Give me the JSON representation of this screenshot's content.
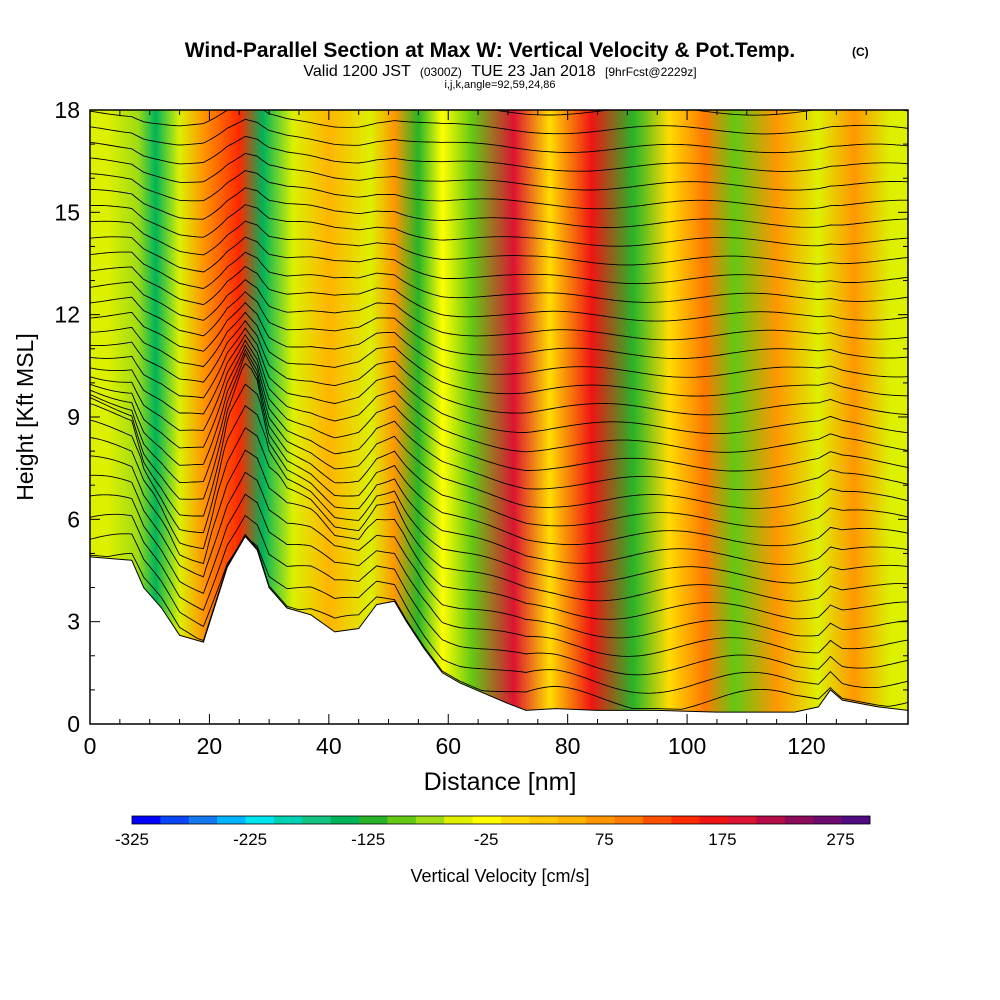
{
  "chart_data": {
    "type": "heatmap",
    "title": "Wind-Parallel Section at Max W: Vertical Velocity & Pot.Temp.",
    "title_mark": "(C)",
    "subtitle_prefix": "Valid 1200 JST",
    "subtitle_utc": "(0300Z)",
    "subtitle_date": "TUE 23 Jan 2018",
    "subtitle_fcst": "[9hrFcst@2229z]",
    "subtitle_params": "i,j,k,angle=92,59,24,86",
    "xlabel": "Distance [nm]",
    "ylabel": "Height [Kft MSL]",
    "xlim": [
      0,
      137
    ],
    "ylim": [
      0,
      18
    ],
    "x_ticks": [
      "0",
      "20",
      "40",
      "60",
      "80",
      "100",
      "120"
    ],
    "y_ticks": [
      "0",
      "3",
      "6",
      "9",
      "12",
      "15",
      "18"
    ],
    "colorbar": {
      "label": "Vertical Velocity [cm/s]",
      "ticks": [
        "-325",
        "-225",
        "-125",
        "-25",
        "75",
        "175",
        "275"
      ],
      "range": [
        -325,
        300
      ],
      "colors": [
        "#0000ff",
        "#0a46f5",
        "#1478f0",
        "#00b4ff",
        "#00e6f0",
        "#00d2b4",
        "#14c382",
        "#00b45a",
        "#28b428",
        "#64c814",
        "#a0dc14",
        "#dcf000",
        "#ffff00",
        "#ffdc00",
        "#ffc800",
        "#ffb400",
        "#ff9600",
        "#ff7800",
        "#ff5000",
        "#ff2800",
        "#f01414",
        "#dc1432",
        "#b40a46",
        "#8c0a5a",
        "#6e0a6e",
        "#500a82"
      ]
    },
    "vertical_velocity_bands": [
      {
        "x": 3,
        "w": -40
      },
      {
        "x": 8,
        "w": -75
      },
      {
        "x": 11,
        "w": -140
      },
      {
        "x": 15,
        "w": -60
      },
      {
        "x": 19,
        "w": 60
      },
      {
        "x": 25,
        "w": 150
      },
      {
        "x": 29,
        "w": -150
      },
      {
        "x": 34,
        "w": -50
      },
      {
        "x": 40,
        "w": 50
      },
      {
        "x": 47,
        "w": -40
      },
      {
        "x": 51,
        "w": 60
      },
      {
        "x": 55,
        "w": -130
      },
      {
        "x": 59,
        "w": -20
      },
      {
        "x": 64,
        "w": -105
      },
      {
        "x": 71,
        "w": 190
      },
      {
        "x": 77,
        "w": 10
      },
      {
        "x": 84,
        "w": 170
      },
      {
        "x": 91,
        "w": -120
      },
      {
        "x": 97,
        "w": -10
      },
      {
        "x": 103,
        "w": 90
      },
      {
        "x": 108,
        "w": -90
      },
      {
        "x": 115,
        "w": 60
      },
      {
        "x": 122,
        "w": -40
      },
      {
        "x": 128,
        "w": 70
      },
      {
        "x": 134,
        "w": -50
      }
    ],
    "terrain_kft": [
      {
        "x": 0,
        "h": 4.9
      },
      {
        "x": 7,
        "h": 4.8
      },
      {
        "x": 9,
        "h": 4.0
      },
      {
        "x": 12,
        "h": 3.4
      },
      {
        "x": 15,
        "h": 2.6
      },
      {
        "x": 19,
        "h": 2.4
      },
      {
        "x": 21,
        "h": 3.5
      },
      {
        "x": 23,
        "h": 4.6
      },
      {
        "x": 26,
        "h": 5.5
      },
      {
        "x": 28,
        "h": 5.1
      },
      {
        "x": 30,
        "h": 4.0
      },
      {
        "x": 33,
        "h": 3.4
      },
      {
        "x": 37,
        "h": 3.2
      },
      {
        "x": 41,
        "h": 2.7
      },
      {
        "x": 45,
        "h": 2.8
      },
      {
        "x": 48,
        "h": 3.5
      },
      {
        "x": 51,
        "h": 3.6
      },
      {
        "x": 53,
        "h": 3.0
      },
      {
        "x": 56,
        "h": 2.2
      },
      {
        "x": 59,
        "h": 1.5
      },
      {
        "x": 62,
        "h": 1.2
      },
      {
        "x": 66,
        "h": 0.9
      },
      {
        "x": 70,
        "h": 0.6
      },
      {
        "x": 73,
        "h": 0.4
      },
      {
        "x": 78,
        "h": 0.45
      },
      {
        "x": 85,
        "h": 0.4
      },
      {
        "x": 95,
        "h": 0.4
      },
      {
        "x": 105,
        "h": 0.35
      },
      {
        "x": 118,
        "h": 0.35
      },
      {
        "x": 122,
        "h": 0.5
      },
      {
        "x": 124,
        "h": 1.0
      },
      {
        "x": 126,
        "h": 0.7
      },
      {
        "x": 132,
        "h": 0.5
      },
      {
        "x": 137,
        "h": 0.4
      }
    ]
  }
}
